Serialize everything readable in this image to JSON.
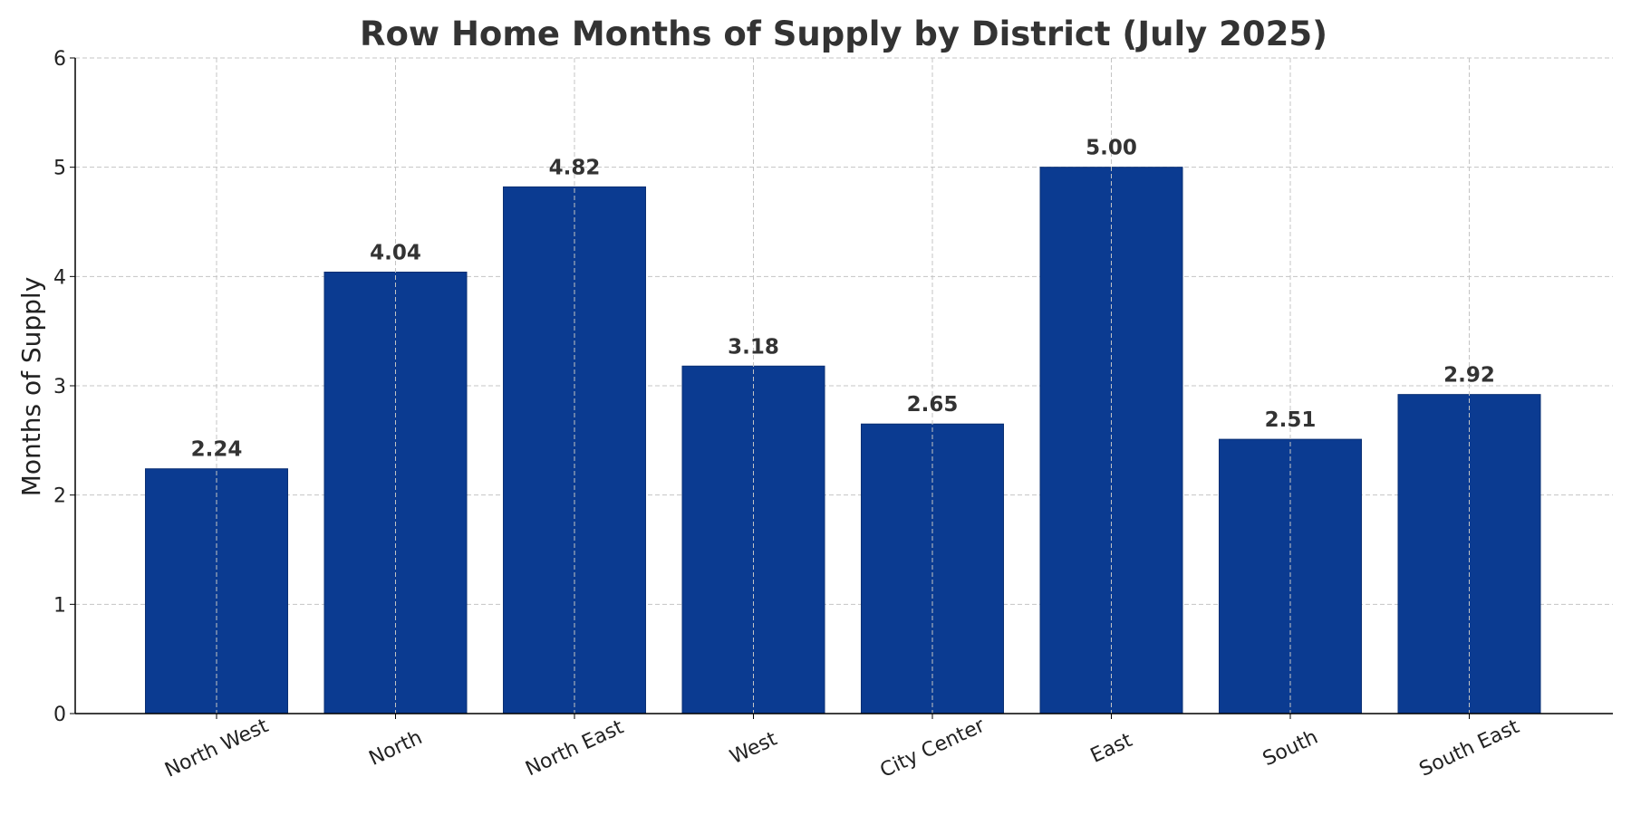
{
  "chart_data": {
    "type": "bar",
    "title": "Row Home Months of Supply by District (July 2025)",
    "xlabel": "",
    "ylabel": "Months of Supply",
    "ylim": [
      0,
      6
    ],
    "yticks": [
      "0",
      "1",
      "2",
      "3",
      "4",
      "5",
      "6"
    ],
    "categories": [
      "North West",
      "North",
      "North East",
      "West",
      "City Center",
      "East",
      "South",
      "South East"
    ],
    "values": [
      2.24,
      4.04,
      4.82,
      3.18,
      2.65,
      5.0,
      2.51,
      2.92
    ],
    "data_labels": [
      "2.24",
      "4.04",
      "4.82",
      "3.18",
      "2.65",
      "5.00",
      "2.51",
      "2.92"
    ],
    "grid": true,
    "bar_color": "#0b3b91",
    "bar_edge_color": "#0a2f73",
    "tick_label_rotation": "rotated"
  }
}
